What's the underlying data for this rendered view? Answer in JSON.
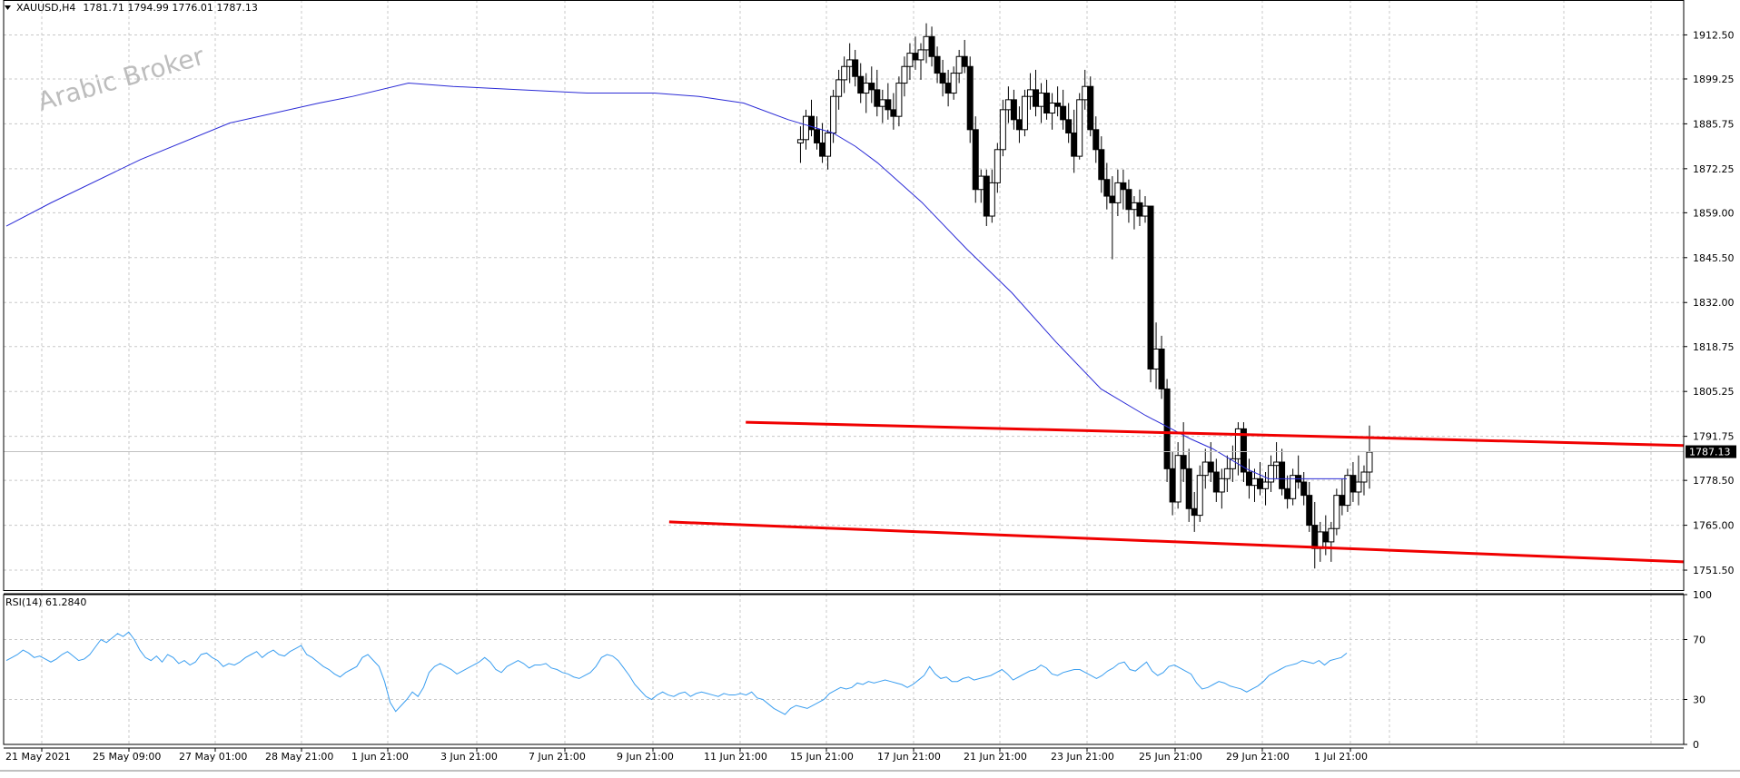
{
  "header": {
    "symbol": "XAUUSD,H4",
    "ohlc": "1781.71 1794.99 1776.01 1787.13"
  },
  "watermark": "Arabic Broker",
  "colors": {
    "grid": "#c8c8c8",
    "candle": "#000000",
    "ma_line": "#2b2bd6",
    "trendline": "#f00000",
    "rsi_line": "#3a9ef0",
    "price_label_bg": "#000000",
    "price_label_text": "#ffffff"
  },
  "chart_data": [
    {
      "type": "candlestick",
      "title": "XAUUSD,H4",
      "ylim": [
        1745.5,
        1923.0
      ],
      "y_ticks": [
        "1912.50",
        "1899.25",
        "1885.75",
        "1872.25",
        "1859.00",
        "1845.50",
        "1832.00",
        "1818.75",
        "1805.25",
        "1791.75",
        "1778.50",
        "1765.00",
        "1751.50"
      ],
      "x_ticks": [
        "21 May 2021",
        "25 May 09:00",
        "27 May 01:00",
        "28 May 21:00",
        "1 Jun 21:00",
        "3 Jun 21:00",
        "7 Jun 21:00",
        "9 Jun 21:00",
        "11 Jun 21:00",
        "15 Jun 21:00",
        "17 Jun 21:00",
        "21 Jun 21:00",
        "23 Jun 21:00",
        "25 Jun 21:00",
        "29 Jun 21:00",
        "1 Jul 21:00"
      ],
      "current_price": "1787.13",
      "bar_count": 246,
      "candles": [
        [
          1880,
          1885,
          1874,
          1881
        ],
        [
          1881,
          1890,
          1878,
          1888
        ],
        [
          1888,
          1893,
          1882,
          1884
        ],
        [
          1884,
          1888,
          1878,
          1880
        ],
        [
          1880,
          1886,
          1874,
          1876
        ],
        [
          1876,
          1884,
          1872,
          1883
        ],
        [
          1883,
          1896,
          1880,
          1894
        ],
        [
          1894,
          1902,
          1890,
          1899
        ],
        [
          1899,
          1906,
          1895,
          1903
        ],
        [
          1903,
          1910,
          1898,
          1905
        ],
        [
          1905,
          1908,
          1897,
          1900
        ],
        [
          1900,
          1904,
          1892,
          1895
        ],
        [
          1895,
          1901,
          1889,
          1898
        ],
        [
          1898,
          1903,
          1892,
          1896
        ],
        [
          1896,
          1902,
          1888,
          1891
        ],
        [
          1891,
          1896,
          1886,
          1893
        ],
        [
          1893,
          1898,
          1887,
          1890
        ],
        [
          1890,
          1895,
          1884,
          1888
        ],
        [
          1888,
          1900,
          1885,
          1898
        ],
        [
          1898,
          1906,
          1894,
          1903
        ],
        [
          1903,
          1910,
          1899,
          1907
        ],
        [
          1907,
          1912,
          1902,
          1905
        ],
        [
          1905,
          1910,
          1899,
          1908
        ],
        [
          1908,
          1916,
          1904,
          1912
        ],
        [
          1912,
          1915,
          1903,
          1906
        ],
        [
          1906,
          1909,
          1898,
          1901
        ],
        [
          1901,
          1905,
          1894,
          1898
        ],
        [
          1898,
          1902,
          1891,
          1895
        ],
        [
          1895,
          1903,
          1893,
          1901
        ],
        [
          1901,
          1908,
          1898,
          1906
        ],
        [
          1906,
          1911,
          1901,
          1903
        ],
        [
          1903,
          1906,
          1880,
          1884
        ],
        [
          1884,
          1888,
          1862,
          1866
        ],
        [
          1866,
          1872,
          1862,
          1870
        ],
        [
          1870,
          1872,
          1855,
          1858
        ],
        [
          1858,
          1872,
          1856,
          1868
        ],
        [
          1868,
          1880,
          1865,
          1878
        ],
        [
          1878,
          1893,
          1876,
          1890
        ],
        [
          1890,
          1897,
          1886,
          1893
        ],
        [
          1893,
          1896,
          1884,
          1887
        ],
        [
          1887,
          1891,
          1880,
          1884
        ],
        [
          1884,
          1896,
          1882,
          1894
        ],
        [
          1894,
          1901,
          1890,
          1896
        ],
        [
          1896,
          1902,
          1888,
          1891
        ],
        [
          1891,
          1898,
          1886,
          1895
        ],
        [
          1895,
          1899,
          1887,
          1889
        ],
        [
          1889,
          1895,
          1884,
          1892
        ],
        [
          1892,
          1897,
          1888,
          1891
        ],
        [
          1891,
          1896,
          1884,
          1887
        ],
        [
          1887,
          1892,
          1880,
          1883
        ],
        [
          1883,
          1890,
          1871,
          1876
        ],
        [
          1876,
          1895,
          1875,
          1893
        ],
        [
          1893,
          1902,
          1890,
          1897
        ],
        [
          1897,
          1900,
          1882,
          1884
        ],
        [
          1884,
          1888,
          1874,
          1878
        ],
        [
          1878,
          1882,
          1865,
          1869
        ],
        [
          1869,
          1874,
          1860,
          1864
        ],
        [
          1864,
          1870,
          1845,
          1862
        ],
        [
          1862,
          1872,
          1858,
          1868
        ],
        [
          1868,
          1872,
          1860,
          1866
        ],
        [
          1866,
          1869,
          1856,
          1860
        ],
        [
          1860,
          1864,
          1854,
          1862
        ],
        [
          1862,
          1866,
          1855,
          1858
        ],
        [
          1858,
          1864,
          1856,
          1861
        ],
        [
          1861,
          1861,
          1808,
          1812
        ],
        [
          1812,
          1826,
          1806,
          1818
        ],
        [
          1818,
          1822,
          1803,
          1806
        ],
        [
          1806,
          1809,
          1778,
          1782
        ],
        [
          1782,
          1787,
          1768,
          1772
        ],
        [
          1772,
          1790,
          1770,
          1786
        ],
        [
          1786,
          1796,
          1778,
          1782
        ],
        [
          1782,
          1788,
          1766,
          1770
        ],
        [
          1770,
          1775,
          1763,
          1768
        ],
        [
          1768,
          1783,
          1766,
          1780
        ],
        [
          1780,
          1788,
          1776,
          1784
        ],
        [
          1784,
          1790,
          1778,
          1781
        ],
        [
          1781,
          1785,
          1772,
          1775
        ],
        [
          1775,
          1782,
          1770,
          1779
        ],
        [
          1779,
          1786,
          1775,
          1782
        ],
        [
          1782,
          1789,
          1778,
          1785
        ],
        [
          1785,
          1796,
          1780,
          1794
        ],
        [
          1794,
          1796,
          1778,
          1781
        ],
        [
          1781,
          1785,
          1773,
          1777
        ],
        [
          1777,
          1782,
          1772,
          1779
        ],
        [
          1779,
          1784,
          1774,
          1776
        ],
        [
          1776,
          1781,
          1771,
          1778
        ],
        [
          1778,
          1786,
          1775,
          1783
        ],
        [
          1783,
          1790,
          1779,
          1784
        ],
        [
          1784,
          1788,
          1774,
          1776
        ],
        [
          1776,
          1780,
          1770,
          1773
        ],
        [
          1773,
          1782,
          1771,
          1780
        ],
        [
          1780,
          1786,
          1776,
          1778
        ],
        [
          1778,
          1781,
          1771,
          1774
        ],
        [
          1774,
          1778,
          1763,
          1765
        ],
        [
          1765,
          1772,
          1752,
          1758
        ],
        [
          1758,
          1766,
          1754,
          1763
        ],
        [
          1763,
          1768,
          1756,
          1760
        ],
        [
          1760,
          1766,
          1754,
          1764
        ],
        [
          1764,
          1776,
          1762,
          1774
        ],
        [
          1774,
          1779,
          1768,
          1771
        ],
        [
          1771,
          1782,
          1769,
          1780
        ],
        [
          1780,
          1784,
          1772,
          1775
        ],
        [
          1775,
          1786,
          1771,
          1778
        ],
        [
          1778,
          1783,
          1774,
          1781
        ],
        [
          1781,
          1795,
          1776,
          1787
        ]
      ],
      "moving_average": [
        [
          0,
          1855
        ],
        [
          8,
          1862
        ],
        [
          24,
          1875
        ],
        [
          40,
          1886
        ],
        [
          56,
          1892
        ],
        [
          62,
          1894
        ],
        [
          72,
          1898
        ],
        [
          80,
          1897
        ],
        [
          92,
          1896
        ],
        [
          104,
          1895
        ],
        [
          116,
          1895
        ],
        [
          124,
          1894
        ],
        [
          132,
          1892
        ],
        [
          140,
          1887
        ],
        [
          148,
          1883
        ],
        [
          152,
          1879
        ],
        [
          156,
          1874
        ],
        [
          164,
          1862
        ],
        [
          172,
          1848
        ],
        [
          180,
          1835
        ],
        [
          188,
          1820
        ],
        [
          196,
          1806
        ],
        [
          204,
          1798
        ],
        [
          212,
          1791
        ],
        [
          216,
          1788
        ],
        [
          222,
          1782
        ],
        [
          226,
          1779
        ],
        [
          232,
          1779
        ],
        [
          240,
          1779
        ]
      ],
      "trendlines": [
        {
          "from": [
            131,
            1796
          ],
          "to": [
            246,
            1789
          ]
        },
        {
          "from": [
            117,
            1766
          ],
          "to": [
            246,
            1754
          ]
        }
      ]
    },
    {
      "type": "line",
      "title": "RSI(14) 61.2840",
      "ylim": [
        0,
        100
      ],
      "y_ticks": [
        "100",
        "70",
        "30",
        "0"
      ],
      "values": [
        56,
        58,
        60,
        63,
        61,
        58,
        59,
        57,
        55,
        57,
        60,
        62,
        59,
        56,
        57,
        60,
        65,
        70,
        68,
        71,
        74,
        72,
        75,
        70,
        63,
        58,
        56,
        59,
        55,
        60,
        58,
        54,
        56,
        53,
        55,
        60,
        61,
        58,
        56,
        52,
        54,
        53,
        55,
        58,
        60,
        62,
        58,
        61,
        63,
        60,
        59,
        62,
        64,
        66,
        60,
        58,
        55,
        52,
        50,
        47,
        45,
        48,
        50,
        52,
        58,
        60,
        56,
        52,
        42,
        28,
        22,
        26,
        30,
        35,
        32,
        38,
        48,
        52,
        54,
        52,
        50,
        47,
        49,
        51,
        53,
        55,
        58,
        55,
        50,
        48,
        52,
        54,
        56,
        54,
        51,
        53,
        53,
        54,
        51,
        50,
        48,
        47,
        45,
        44,
        46,
        48,
        52,
        58,
        60,
        59,
        56,
        51,
        46,
        40,
        36,
        32,
        30,
        33,
        35,
        33,
        32,
        34,
        35,
        32,
        34,
        35,
        34,
        33,
        32,
        34,
        33,
        33,
        34,
        33,
        35,
        31,
        30,
        27,
        24,
        22,
        20,
        24,
        26,
        25,
        24,
        26,
        28,
        30,
        34,
        36,
        38,
        37,
        38,
        41,
        40,
        42,
        41,
        42,
        43,
        42,
        41,
        40,
        38,
        40,
        43,
        46,
        52,
        47,
        44,
        45,
        42,
        42,
        44,
        45,
        43,
        44,
        45,
        46,
        48,
        50,
        47,
        43,
        45,
        47,
        49,
        50,
        53,
        51,
        47,
        46,
        48,
        49,
        50,
        50,
        48,
        46,
        44,
        46,
        49,
        51,
        54,
        55,
        50,
        49,
        52,
        55,
        49,
        46,
        48,
        52,
        53,
        51,
        49,
        47,
        41,
        37,
        38,
        40,
        42,
        41,
        39,
        38,
        37,
        35,
        37,
        39,
        42,
        46,
        48,
        50,
        52,
        53,
        54,
        56,
        55,
        54,
        56,
        53,
        56,
        57,
        58,
        61
      ]
    }
  ]
}
